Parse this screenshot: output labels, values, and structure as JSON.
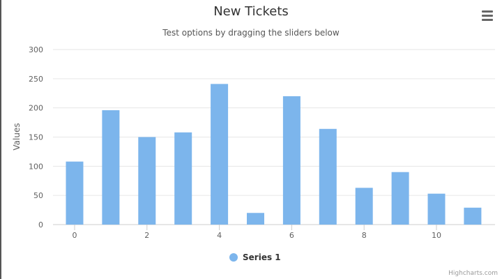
{
  "chart_data": {
    "type": "bar",
    "title": "New Tickets",
    "subtitle": "Test options by dragging the sliders below",
    "ylabel": "Values",
    "xlabel": "",
    "x": [
      0,
      1,
      2,
      3,
      4,
      5,
      6,
      7,
      8,
      9,
      10,
      11
    ],
    "x_tick_labels": [
      "0",
      "2",
      "4",
      "6",
      "8",
      "10"
    ],
    "x_tick_values": [
      0,
      2,
      4,
      6,
      8,
      10
    ],
    "y_tick_labels": [
      "0",
      "50",
      "100",
      "150",
      "200",
      "250",
      "300"
    ],
    "y_tick_values": [
      0,
      50,
      100,
      150,
      200,
      250,
      300
    ],
    "ylim": [
      0,
      300
    ],
    "grid": true,
    "legend_position": "bottom-center",
    "series": [
      {
        "name": "Series 1",
        "color": "#7cb5ec",
        "values": [
          108,
          196,
          150,
          158,
          241,
          20,
          220,
          164,
          63,
          90,
          53,
          29
        ]
      }
    ]
  },
  "credits": "Highcharts.com",
  "menu_icon": "hamburger-menu-icon"
}
